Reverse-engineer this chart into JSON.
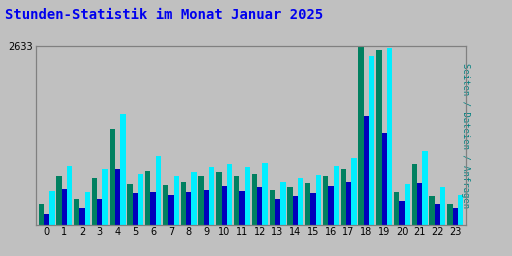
{
  "title": "Stunden-Statistik im Monat Januar 2025",
  "title_color": "#0000EE",
  "ylabel_right": "Seiten / Dateien / Anfragen",
  "ylabel_right_color": "#008080",
  "hours": [
    0,
    1,
    2,
    3,
    4,
    5,
    6,
    7,
    8,
    9,
    10,
    11,
    12,
    13,
    14,
    15,
    16,
    17,
    18,
    19,
    20,
    21,
    22,
    23
  ],
  "seiten": [
    320,
    720,
    380,
    700,
    1420,
    600,
    800,
    590,
    640,
    720,
    790,
    720,
    760,
    520,
    560,
    620,
    720,
    820,
    2633,
    2580,
    490,
    900,
    430,
    320
  ],
  "dateien": [
    170,
    530,
    250,
    380,
    820,
    480,
    490,
    450,
    490,
    520,
    570,
    510,
    560,
    390,
    430,
    470,
    570,
    640,
    1600,
    1350,
    360,
    620,
    310,
    260
  ],
  "anfragen": [
    500,
    870,
    490,
    820,
    1630,
    760,
    1020,
    720,
    780,
    860,
    900,
    860,
    910,
    640,
    700,
    740,
    870,
    990,
    2490,
    2610,
    610,
    1090,
    560,
    440
  ],
  "color_seiten": "#008060",
  "color_dateien": "#0000BB",
  "color_anfragen": "#00EEFF",
  "ylim_max": 2633,
  "bg_color": "#C0C0C0",
  "bar_width": 0.3,
  "grid_color": "#AAAAAA",
  "grid_linewidth": 0.7,
  "title_fontsize": 10,
  "tick_fontsize": 7
}
